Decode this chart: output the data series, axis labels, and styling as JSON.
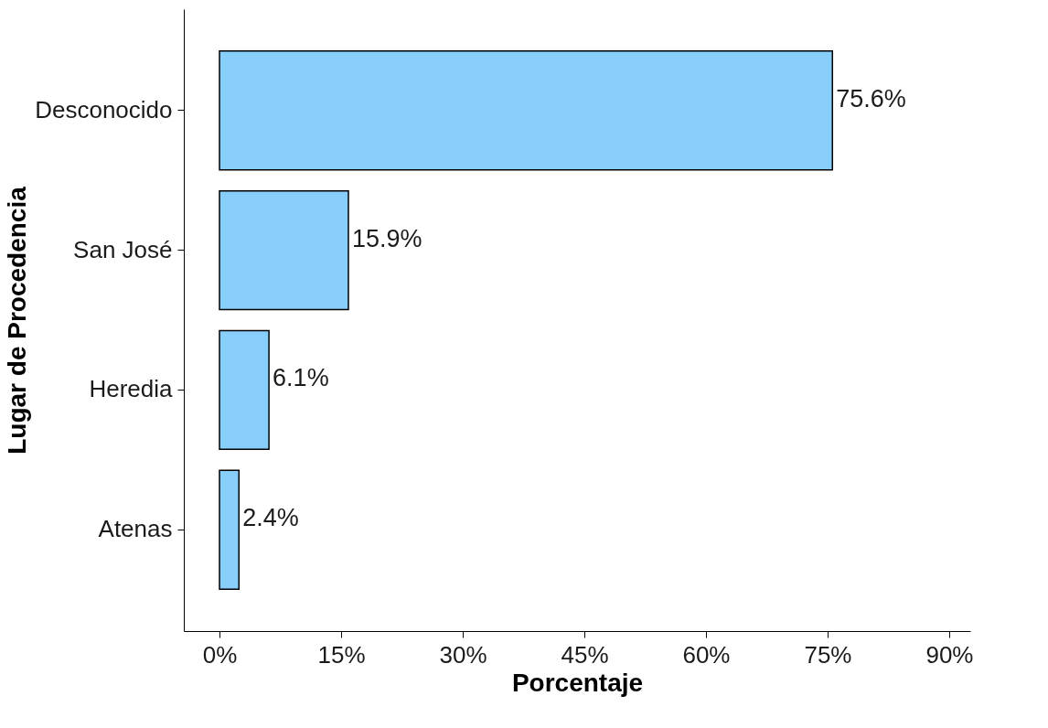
{
  "chart_data": {
    "type": "bar",
    "orientation": "horizontal",
    "xlabel": "Porcentaje",
    "ylabel": "Lugar de Procedencia",
    "categories": [
      "Desconocido",
      "San José",
      "Heredia",
      "Atenas"
    ],
    "values": [
      75.6,
      15.9,
      6.1,
      2.4
    ],
    "value_labels": [
      "75.6%",
      "15.9%",
      "6.1%",
      "2.4%"
    ],
    "color": "#87cefa",
    "xlim": [
      -4.4,
      92.6
    ],
    "xticks": [
      {
        "value": 0,
        "label": "0%"
      },
      {
        "value": 15,
        "label": "15%"
      },
      {
        "value": 30,
        "label": "30%"
      },
      {
        "value": 45,
        "label": "45%"
      },
      {
        "value": 60,
        "label": "60%"
      },
      {
        "value": 75,
        "label": "75%"
      },
      {
        "value": 90,
        "label": "90%"
      }
    ],
    "grid": false
  }
}
